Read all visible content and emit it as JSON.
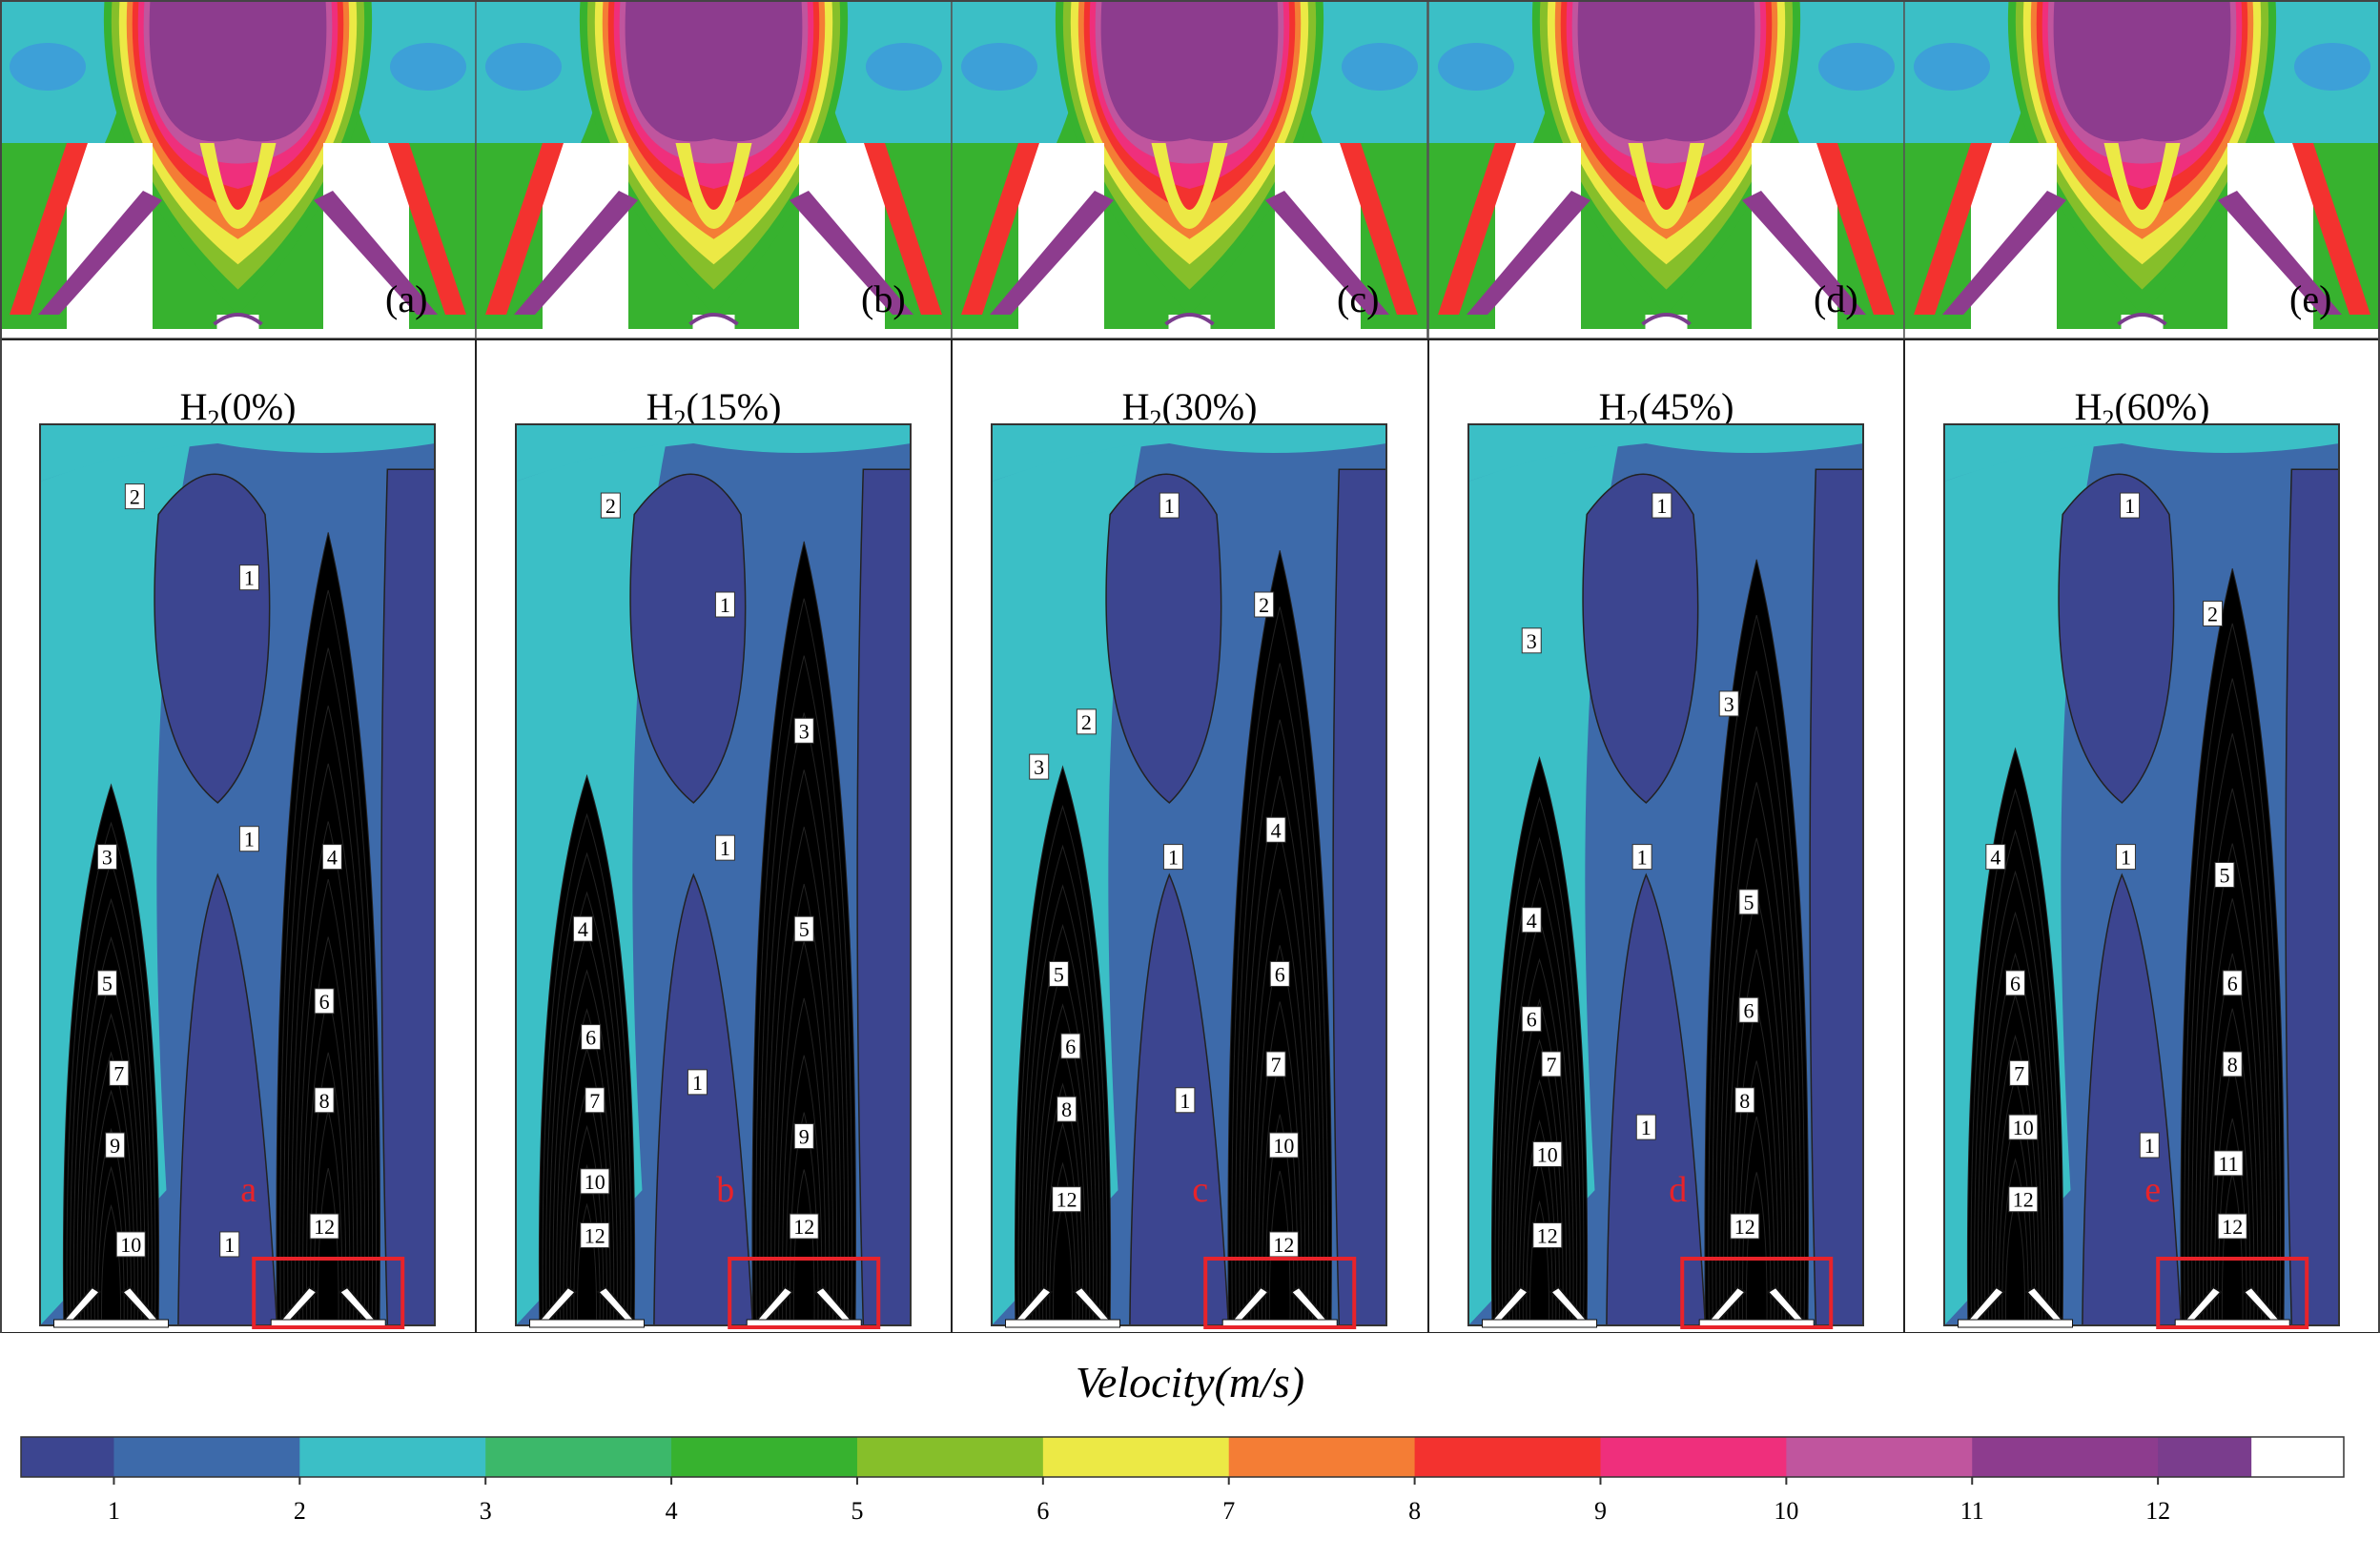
{
  "panels": [
    {
      "letter": "(a)",
      "title_main": "H",
      "title_sub": "2",
      "title_rest": "(0%)",
      "marker": "a",
      "contour_labels": [
        "2",
        "1",
        "1",
        "3",
        "4",
        "5",
        "6",
        "7",
        "8",
        "9",
        "1",
        "10",
        "12"
      ]
    },
    {
      "letter": "(b)",
      "title_main": "H",
      "title_sub": "2",
      "title_rest": "(15%)",
      "marker": "b",
      "contour_labels": [
        "2",
        "1",
        "3",
        "1",
        "4",
        "5",
        "6",
        "7",
        "1",
        "9",
        "10",
        "12",
        "12"
      ]
    },
    {
      "letter": "(c)",
      "title_main": "H",
      "title_sub": "2",
      "title_rest": "(30%)",
      "marker": "c",
      "contour_labels": [
        "1",
        "2",
        "2",
        "3",
        "1",
        "4",
        "5",
        "6",
        "6",
        "7",
        "8",
        "1",
        "10",
        "12",
        "12"
      ]
    },
    {
      "letter": "(d)",
      "title_main": "H",
      "title_sub": "2",
      "title_rest": "(45%)",
      "marker": "d",
      "contour_labels": [
        "1",
        "3",
        "3",
        "1",
        "4",
        "5",
        "6",
        "6",
        "7",
        "8",
        "1",
        "10",
        "12",
        "12"
      ]
    },
    {
      "letter": "(e)",
      "title_main": "H",
      "title_sub": "2",
      "title_rest": "(60%)",
      "marker": "e",
      "contour_labels": [
        "1",
        "2",
        "4",
        "1",
        "5",
        "6",
        "6",
        "7",
        "8",
        "10",
        "11",
        "1",
        "12",
        "12"
      ]
    }
  ],
  "colorbar": {
    "title": "Velocity(m/s)",
    "ticks": [
      "1",
      "2",
      "3",
      "4",
      "5",
      "6",
      "7",
      "8",
      "9",
      "10",
      "11",
      "12"
    ],
    "colors": [
      "#3c4590",
      "#3d6aaa",
      "#3bbfc6",
      "#3cb86a",
      "#37b22f",
      "#86bf2a",
      "#ece945",
      "#f47d35",
      "#f3322f",
      "#ef2f7c",
      "#c0559e",
      "#8d3c8e",
      "#7a3d8d"
    ]
  }
}
